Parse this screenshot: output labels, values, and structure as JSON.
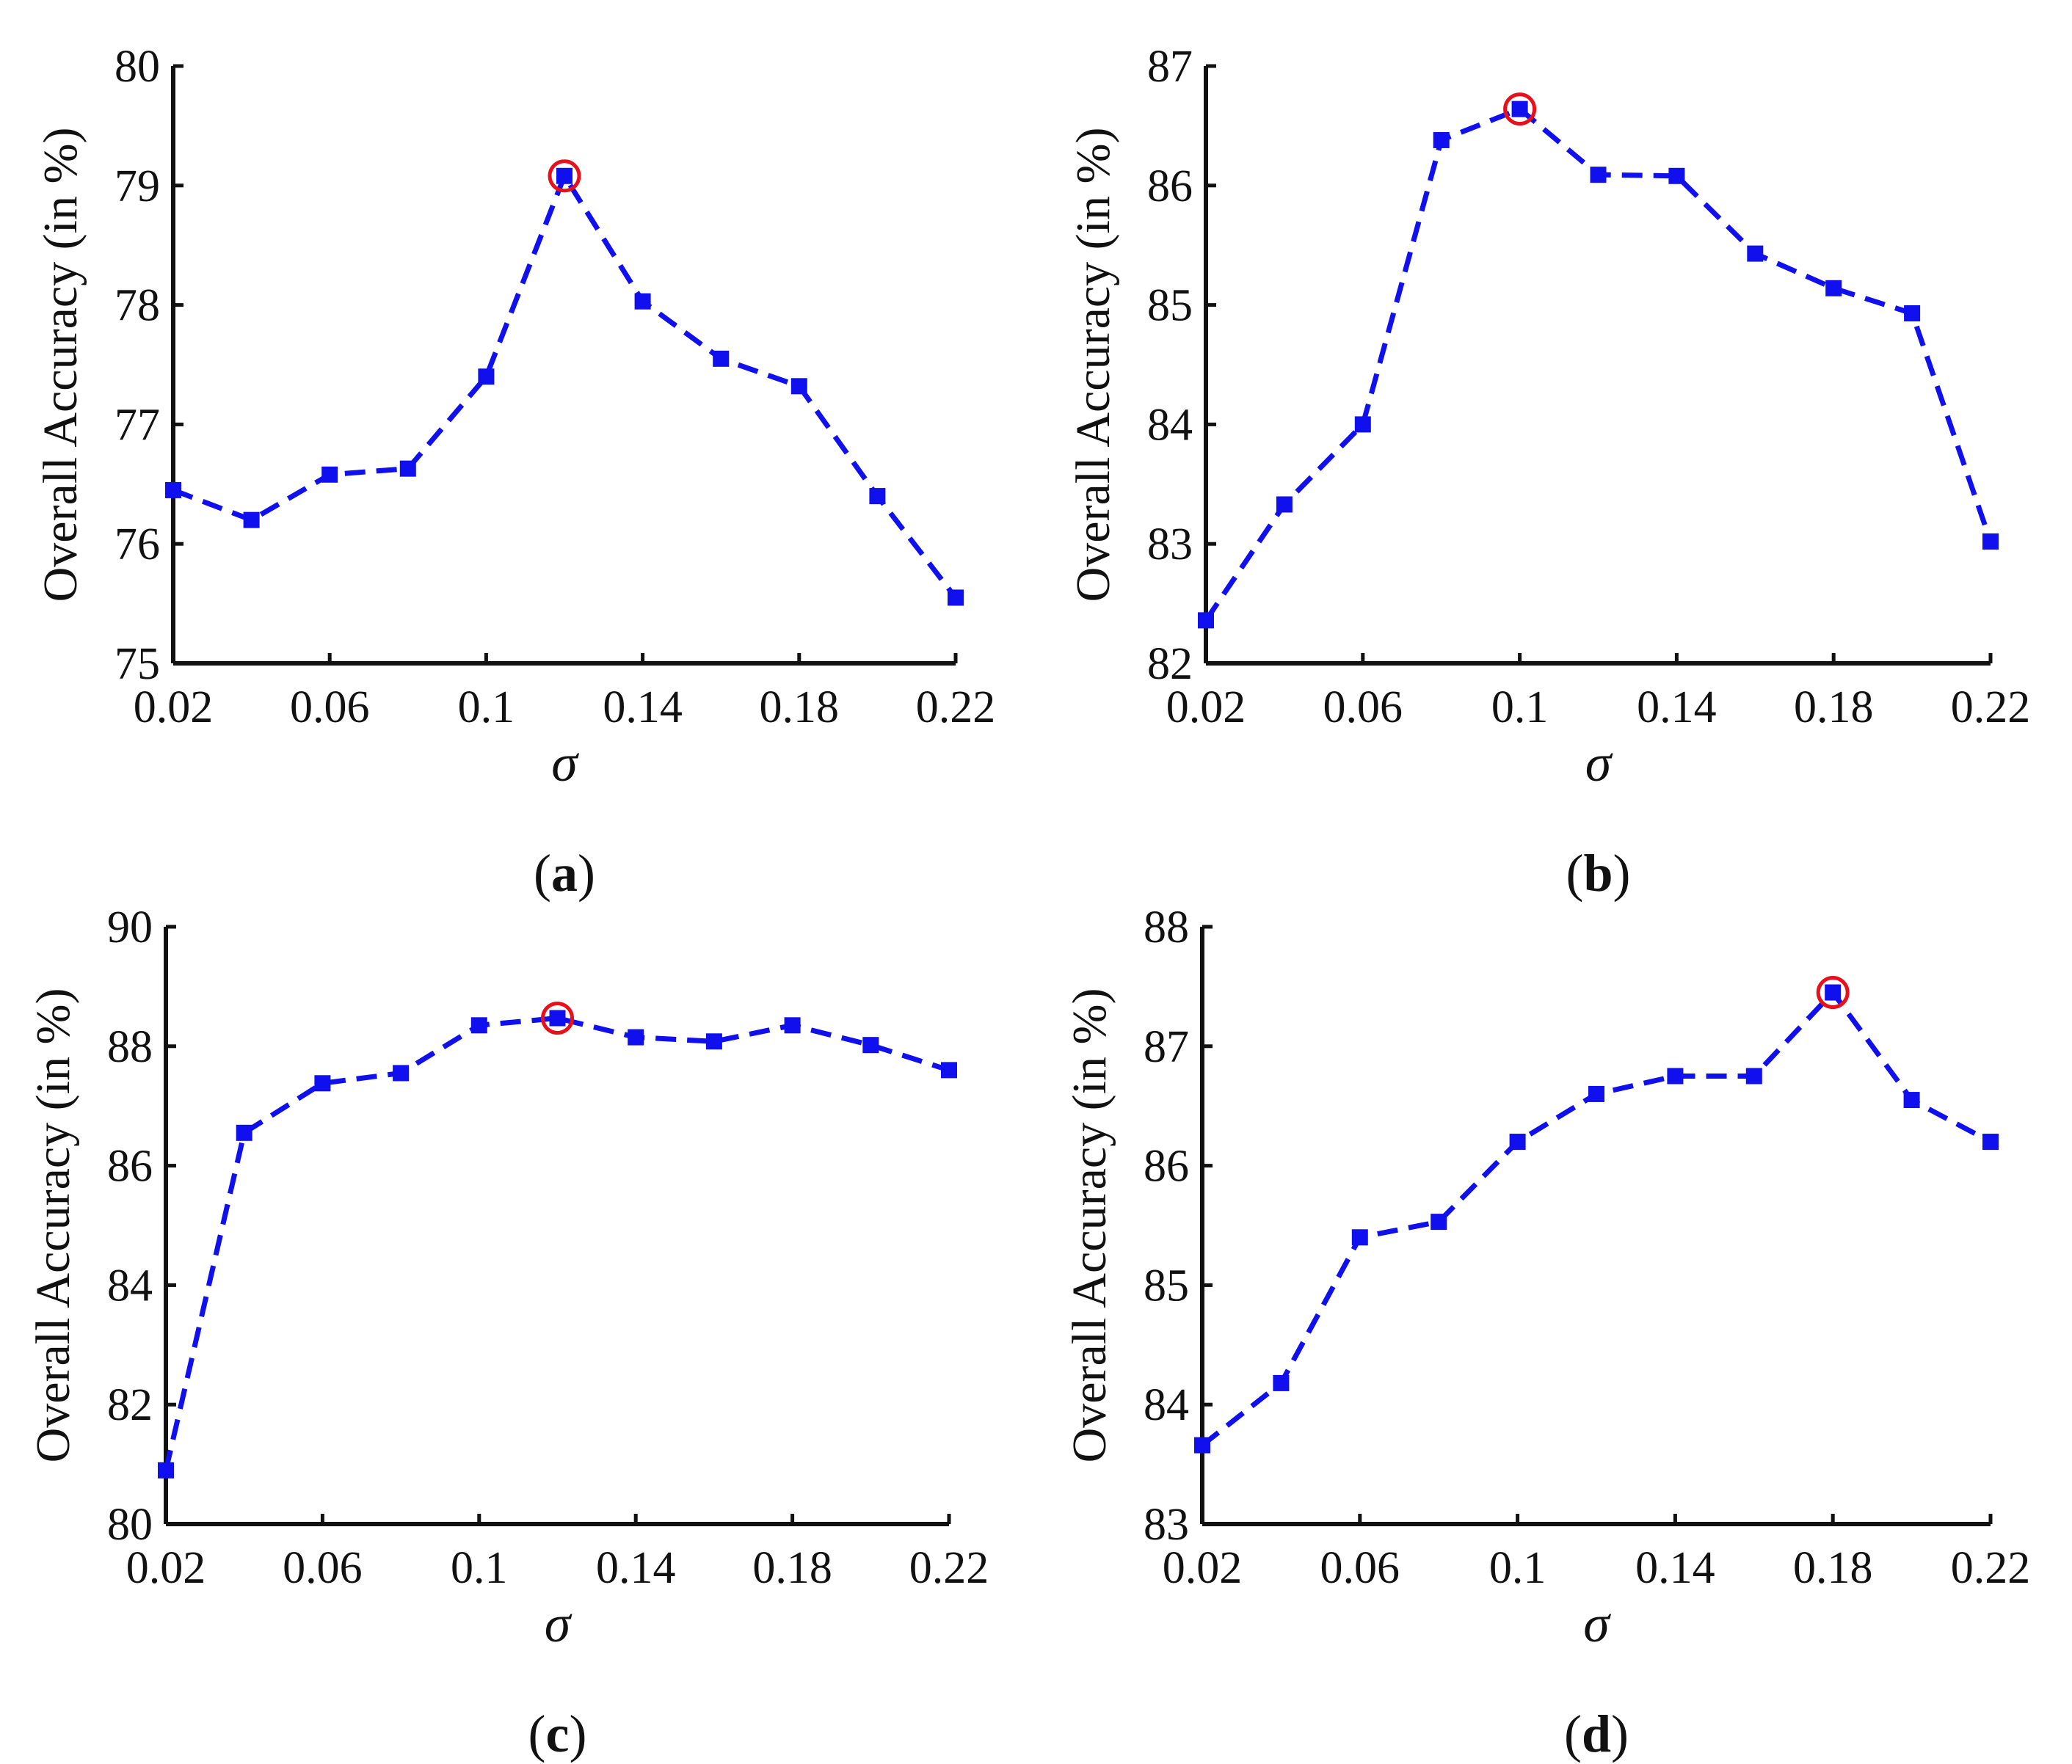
{
  "colors": {
    "series": "#1010ee",
    "highlight": "#e8101a",
    "axis": "#111111"
  },
  "chart_data": [
    {
      "type": "line",
      "panel": "a",
      "caption": {
        "open": "(",
        "letter": "a",
        "close": ")"
      },
      "xlabel": "σ",
      "ylabel": "Overall Accuracy (in %)",
      "xlim": [
        0.02,
        0.22
      ],
      "ylim": [
        75,
        80
      ],
      "xticks": [
        0.02,
        0.06,
        0.1,
        0.14,
        0.18,
        0.22
      ],
      "xtick_labels": [
        "0.02",
        "0.06",
        "0.1",
        "0.14",
        "0.18",
        "0.22"
      ],
      "yticks": [
        75,
        76,
        77,
        78,
        79,
        80
      ],
      "ytick_labels": [
        "75",
        "76",
        "77",
        "78",
        "79",
        "80"
      ],
      "x": [
        0.02,
        0.04,
        0.06,
        0.08,
        0.1,
        0.12,
        0.14,
        0.16,
        0.18,
        0.2,
        0.22
      ],
      "y": [
        76.45,
        76.2,
        76.58,
        76.63,
        77.4,
        79.08,
        78.03,
        77.55,
        77.32,
        76.4,
        75.55
      ],
      "highlight_index": 5,
      "grid": false
    },
    {
      "type": "line",
      "panel": "b",
      "caption": {
        "open": "(",
        "letter": "b",
        "close": ")"
      },
      "xlabel": "σ",
      "ylabel": "Overall Accuracy (in %)",
      "xlim": [
        0.02,
        0.22
      ],
      "ylim": [
        82,
        87
      ],
      "xticks": [
        0.02,
        0.06,
        0.1,
        0.14,
        0.18,
        0.22
      ],
      "xtick_labels": [
        "0.02",
        "0.06",
        "0.1",
        "0.14",
        "0.18",
        "0.22"
      ],
      "yticks": [
        82,
        83,
        84,
        85,
        86,
        87
      ],
      "ytick_labels": [
        "82",
        "83",
        "84",
        "85",
        "86",
        "87"
      ],
      "x": [
        0.02,
        0.04,
        0.06,
        0.08,
        0.1,
        0.12,
        0.14,
        0.16,
        0.18,
        0.2,
        0.22
      ],
      "y": [
        82.36,
        83.33,
        84.0,
        86.38,
        86.64,
        86.09,
        86.08,
        85.43,
        85.14,
        84.93,
        83.02
      ],
      "highlight_index": 4,
      "grid": false
    },
    {
      "type": "line",
      "panel": "c",
      "caption": {
        "open": "(",
        "letter": "c",
        "close": ")"
      },
      "xlabel": "σ",
      "ylabel": "Overall Accuracy (in %)",
      "xlim": [
        0.02,
        0.22
      ],
      "ylim": [
        80,
        90
      ],
      "xticks": [
        0.02,
        0.06,
        0.1,
        0.14,
        0.18,
        0.22
      ],
      "xtick_labels": [
        "0.02",
        "0.06",
        "0.1",
        "0.14",
        "0.18",
        "0.22"
      ],
      "yticks": [
        80,
        82,
        84,
        86,
        88,
        90
      ],
      "ytick_labels": [
        "80",
        "82",
        "84",
        "86",
        "88",
        "90"
      ],
      "x": [
        0.02,
        0.04,
        0.06,
        0.08,
        0.1,
        0.12,
        0.14,
        0.16,
        0.18,
        0.2,
        0.22
      ],
      "y": [
        80.9,
        86.55,
        87.38,
        87.55,
        88.35,
        88.47,
        88.15,
        88.08,
        88.35,
        88.02,
        87.6
      ],
      "highlight_index": 5,
      "grid": false
    },
    {
      "type": "line",
      "panel": "d",
      "caption": {
        "open": "(",
        "letter": "d",
        "close": ")"
      },
      "xlabel": "σ",
      "ylabel": "Overall Accuracy (in %)",
      "xlim": [
        0.02,
        0.22
      ],
      "ylim": [
        83,
        88
      ],
      "xticks": [
        0.02,
        0.06,
        0.1,
        0.14,
        0.18,
        0.22
      ],
      "xtick_labels": [
        "0.02",
        "0.06",
        "0.1",
        "0.14",
        "0.18",
        "0.22"
      ],
      "yticks": [
        83,
        84,
        85,
        86,
        87,
        88
      ],
      "ytick_labels": [
        "83",
        "84",
        "85",
        "86",
        "87",
        "88"
      ],
      "x": [
        0.02,
        0.04,
        0.06,
        0.08,
        0.1,
        0.12,
        0.14,
        0.16,
        0.18,
        0.2,
        0.22
      ],
      "y": [
        83.66,
        84.18,
        85.4,
        85.53,
        86.2,
        86.6,
        86.75,
        86.75,
        87.45,
        86.55,
        86.2
      ],
      "highlight_index": 8,
      "grid": false
    }
  ]
}
